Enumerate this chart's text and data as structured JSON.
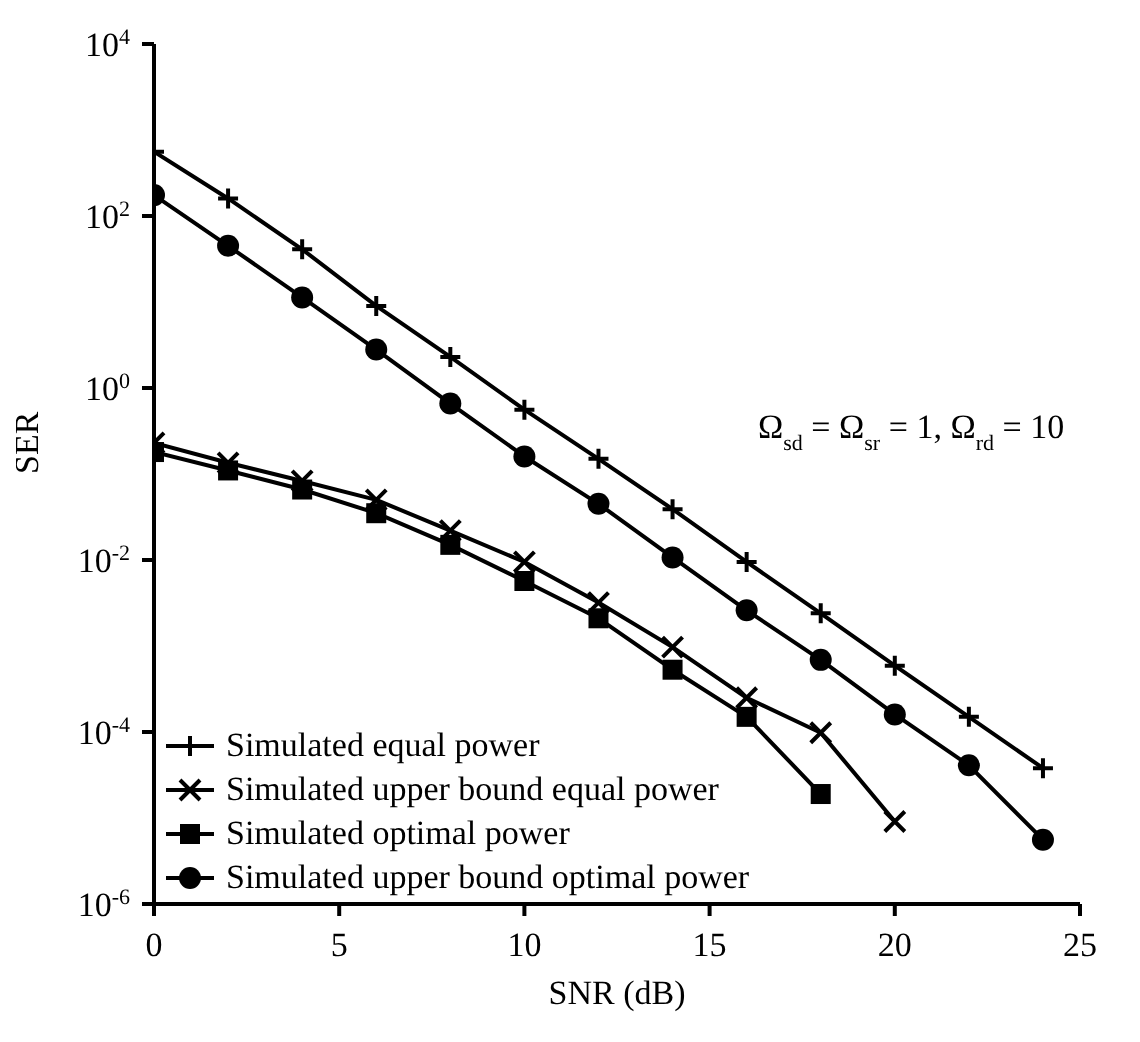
{
  "chart_data": {
    "type": "line",
    "xlabel": "SNR (dB)",
    "ylabel": "SER",
    "log": "y",
    "grid": false,
    "legend": "bottom left",
    "annotations": [
      "Ω$_{sd}$ = Ω$_{sr}$ = 1, Ω$_{rd}$ = 10"
    ],
    "xlim": [
      0,
      25
    ],
    "xticks": [
      0,
      5,
      10,
      15,
      20,
      25
    ],
    "ylim": [
      1e-06,
      10000
    ],
    "yticks": [
      {
        "value": 10000,
        "label": "10$^{4}$"
      },
      {
        "value": 100,
        "label": "10$^{2}$"
      },
      {
        "value": 1,
        "label": "10$^{0}$"
      },
      {
        "value": 0.01,
        "label": "10$^{-2}$"
      },
      {
        "value": 0.0001,
        "label": "10$^{-4}$"
      },
      {
        "value": 1e-06,
        "label": "10$^{-6}$"
      }
    ],
    "series": [
      {
        "name": "Simulated equal power",
        "color": "#000000",
        "marker": "plus",
        "x": [
          0,
          2,
          4,
          6,
          8,
          10,
          12,
          14,
          16,
          18,
          20,
          22,
          24
        ],
        "values": [
          560,
          160,
          41,
          9,
          2.3,
          0.56,
          0.15,
          0.039,
          0.0095,
          0.0024,
          0.00059,
          0.00015,
          3.8e-05
        ]
      },
      {
        "name": "Simulated upper bound equal power",
        "color": "#000000",
        "marker": "cross",
        "x": [
          0,
          2,
          4,
          6,
          8,
          10,
          12,
          14,
          16,
          18,
          20
        ],
        "values": [
          0.23,
          0.135,
          0.083,
          0.05,
          0.022,
          0.0095,
          0.0032,
          0.00097,
          0.00025,
          9.8e-05,
          9.1e-06
        ]
      },
      {
        "name": "Simulated optimal power",
        "color": "#000000",
        "marker": "square",
        "x": [
          0,
          2,
          4,
          6,
          8,
          10,
          12,
          14,
          16,
          18
        ],
        "values": [
          0.18,
          0.11,
          0.066,
          0.035,
          0.015,
          0.0057,
          0.0021,
          0.00053,
          0.00015,
          1.9e-05
        ]
      },
      {
        "name": "Simulated upper bound optimal power",
        "color": "#000000",
        "marker": "circle",
        "x": [
          0,
          2,
          4,
          6,
          8,
          10,
          12,
          14,
          16,
          18,
          20,
          22,
          24
        ],
        "values": [
          175,
          45,
          11.3,
          2.8,
          0.66,
          0.16,
          0.045,
          0.0107,
          0.0026,
          0.00069,
          0.00016,
          4.1e-05,
          5.6e-06
        ]
      }
    ]
  }
}
